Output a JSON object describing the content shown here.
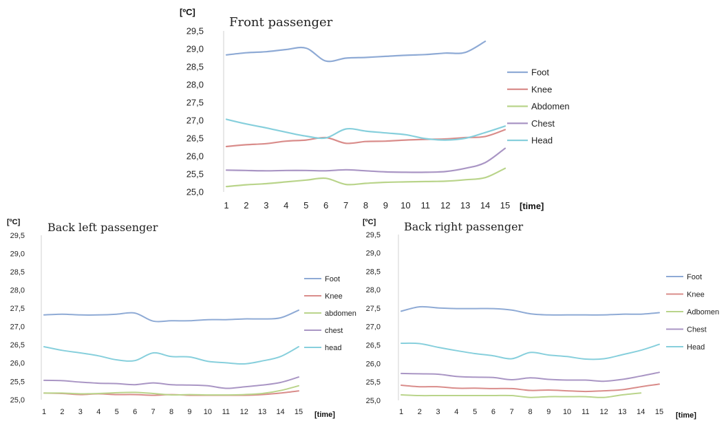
{
  "chart_data": [
    {
      "type": "line",
      "title": "Front passenger",
      "ylabel": "[ºC]",
      "xlabel": "[time]",
      "x": [
        1,
        2,
        3,
        4,
        5,
        6,
        7,
        8,
        9,
        10,
        11,
        12,
        13,
        14,
        15
      ],
      "x_tick_labels": [
        "1",
        "2",
        "3",
        "4",
        "5",
        "6",
        "7",
        "8",
        "9",
        "10",
        "11",
        "12",
        "13",
        "14",
        "15"
      ],
      "y_tick_labels": [
        "25,0",
        "25,5",
        "26,0",
        "26,5",
        "27,0",
        "27,5",
        "28,0",
        "28,5",
        "29,0",
        "29,5"
      ],
      "ylim": [
        25.0,
        29.5
      ],
      "grid": false,
      "legend_position": "right",
      "series": [
        {
          "name": "Foot",
          "color": "#8eaad5",
          "values": [
            28.83,
            28.89,
            28.92,
            28.98,
            29.02,
            28.66,
            28.74,
            28.76,
            28.79,
            28.82,
            28.84,
            28.88,
            28.9,
            29.21,
            null
          ]
        },
        {
          "name": "Knee",
          "color": "#d98c8a",
          "values": [
            26.27,
            26.32,
            26.35,
            26.42,
            26.45,
            26.52,
            26.36,
            26.41,
            26.42,
            26.45,
            26.47,
            26.48,
            26.52,
            26.55,
            26.74
          ]
        },
        {
          "name": "Abdomen",
          "color": "#b9d48a",
          "values": [
            25.15,
            25.2,
            25.23,
            25.28,
            25.33,
            25.38,
            25.21,
            25.24,
            25.27,
            25.28,
            25.29,
            25.3,
            25.34,
            25.4,
            25.66
          ]
        },
        {
          "name": "Chest",
          "color": "#a995c4",
          "values": [
            25.61,
            25.6,
            25.59,
            25.6,
            25.6,
            25.59,
            25.62,
            25.59,
            25.56,
            25.55,
            25.55,
            25.57,
            25.66,
            25.82,
            26.22
          ]
        },
        {
          "name": "Head",
          "color": "#86cfdc",
          "values": [
            27.03,
            26.9,
            26.79,
            26.67,
            26.56,
            26.51,
            26.76,
            26.7,
            26.65,
            26.6,
            26.49,
            26.45,
            26.5,
            26.66,
            26.84
          ]
        }
      ]
    },
    {
      "type": "line",
      "title": "Back left passenger",
      "ylabel": "[ºC]",
      "xlabel": "[time]",
      "x": [
        1,
        2,
        3,
        4,
        5,
        6,
        7,
        8,
        9,
        10,
        11,
        12,
        13,
        14,
        15
      ],
      "x_tick_labels": [
        "1",
        "2",
        "3",
        "4",
        "5",
        "6",
        "7",
        "8",
        "9",
        "10",
        "11",
        "12",
        "13",
        "14",
        "15"
      ],
      "y_tick_labels": [
        "25,0",
        "25,5",
        "26,0",
        "26,5",
        "27,0",
        "27,5",
        "28,0",
        "28,5",
        "29,0",
        "29,5"
      ],
      "ylim": [
        25.0,
        29.5
      ],
      "grid": false,
      "legend_position": "right",
      "series": [
        {
          "name": "Foot",
          "color": "#8eaad5",
          "values": [
            27.32,
            27.34,
            27.32,
            27.32,
            27.34,
            27.37,
            27.15,
            27.16,
            27.16,
            27.19,
            27.19,
            27.21,
            27.21,
            27.24,
            27.45
          ]
        },
        {
          "name": "Knee",
          "color": "#d98c8a",
          "values": [
            25.18,
            25.17,
            25.14,
            25.16,
            25.14,
            25.14,
            25.12,
            25.14,
            25.12,
            25.12,
            25.12,
            25.12,
            25.14,
            25.18,
            25.24
          ]
        },
        {
          "name": "abdomen",
          "color": "#b9d48a",
          "values": [
            25.18,
            25.18,
            25.16,
            25.17,
            25.19,
            25.2,
            25.17,
            25.13,
            25.14,
            25.13,
            25.13,
            25.14,
            25.17,
            25.25,
            25.38
          ]
        },
        {
          "name": "chest",
          "color": "#a995c4",
          "values": [
            25.53,
            25.52,
            25.48,
            25.45,
            25.44,
            25.41,
            25.46,
            25.41,
            25.4,
            25.38,
            25.31,
            25.35,
            25.4,
            25.47,
            25.62
          ]
        },
        {
          "name": "head",
          "color": "#86cfdc",
          "values": [
            26.45,
            26.35,
            26.28,
            26.2,
            26.09,
            26.07,
            26.28,
            26.18,
            26.17,
            26.05,
            26.01,
            25.98,
            26.06,
            26.18,
            26.45
          ]
        }
      ]
    },
    {
      "type": "line",
      "title": "Back right passenger",
      "ylabel": "[ºC]",
      "xlabel": "[time]",
      "x": [
        1,
        2,
        3,
        4,
        5,
        6,
        7,
        8,
        9,
        10,
        11,
        12,
        13,
        14,
        15
      ],
      "x_tick_labels": [
        "1",
        "2",
        "3",
        "4",
        "5",
        "6",
        "7",
        "8",
        "9",
        "10",
        "11",
        "12",
        "13",
        "14",
        "15"
      ],
      "y_tick_labels": [
        "25,0",
        "25,5",
        "26,0",
        "26,5",
        "27,0",
        "27,5",
        "28,0",
        "28,5",
        "29,0",
        "29,5"
      ],
      "ylim": [
        25.0,
        29.5
      ],
      "grid": false,
      "legend_position": "right",
      "series": [
        {
          "name": "Foot",
          "color": "#8eaad5",
          "values": [
            27.42,
            27.54,
            27.51,
            27.49,
            27.49,
            27.49,
            27.45,
            27.35,
            27.32,
            27.32,
            27.32,
            27.32,
            27.34,
            27.34,
            27.38
          ]
        },
        {
          "name": "Knee",
          "color": "#d98c8a",
          "values": [
            25.41,
            25.37,
            25.37,
            25.33,
            25.33,
            25.32,
            25.32,
            25.27,
            25.28,
            25.26,
            25.24,
            25.26,
            25.29,
            25.37,
            25.44
          ]
        },
        {
          "name": "Adbomen",
          "color": "#b9d48a",
          "values": [
            25.15,
            25.13,
            25.13,
            25.13,
            25.13,
            25.13,
            25.13,
            25.08,
            25.1,
            25.1,
            25.1,
            25.08,
            25.15,
            25.2,
            null
          ]
        },
        {
          "name": "Chest",
          "color": "#a995c4",
          "values": [
            25.73,
            25.72,
            25.71,
            25.65,
            25.63,
            25.62,
            25.56,
            25.61,
            25.57,
            25.55,
            25.55,
            25.52,
            25.57,
            25.66,
            25.76
          ]
        },
        {
          "name": "Head",
          "color": "#86cfdc",
          "values": [
            26.55,
            26.54,
            26.44,
            26.35,
            26.27,
            26.21,
            26.13,
            26.3,
            26.23,
            26.19,
            26.12,
            26.13,
            26.24,
            26.36,
            26.52
          ]
        }
      ]
    }
  ]
}
